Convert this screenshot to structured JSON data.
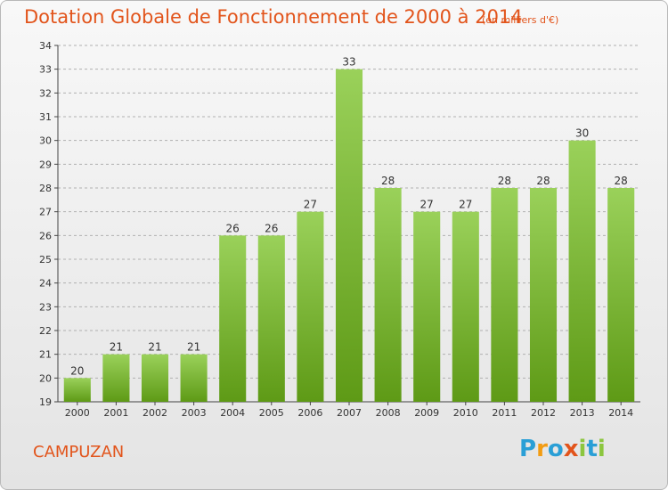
{
  "header": {
    "title": "Dotation Globale de Fonctionnement de 2000 à 2014",
    "subtitle": "(en milliers d'€)"
  },
  "footer": {
    "commune": "CAMPUZAN",
    "logo_text": "Proxiti",
    "logo_letters": [
      {
        "ch": "P",
        "color": "#2a9fd6"
      },
      {
        "ch": "r",
        "color": "#f39c12"
      },
      {
        "ch": "o",
        "color": "#2a9fd6"
      },
      {
        "ch": "x",
        "color": "#e2541b"
      },
      {
        "ch": "i",
        "color": "#8cc63f"
      },
      {
        "ch": "t",
        "color": "#2a9fd6"
      },
      {
        "ch": "i",
        "color": "#8cc63f"
      }
    ]
  },
  "colors": {
    "accent": "#e2541b",
    "bar_top": "#9ad15a",
    "bar_bottom": "#5e9a16",
    "grid": "#b0b0b0",
    "axis": "#444444",
    "text": "#333333"
  },
  "chart_data": {
    "type": "bar",
    "title": "Dotation Globale de Fonctionnement de 2000 à 2014",
    "subtitle": "(en milliers d'€)",
    "categories": [
      "2000",
      "2001",
      "2002",
      "2003",
      "2004",
      "2005",
      "2006",
      "2007",
      "2008",
      "2009",
      "2010",
      "2011",
      "2012",
      "2013",
      "2014"
    ],
    "values": [
      20,
      21,
      21,
      21,
      26,
      26,
      27,
      33,
      28,
      27,
      27,
      28,
      28,
      30,
      28
    ],
    "ylim": [
      19,
      34
    ],
    "yticks": [
      19,
      20,
      21,
      22,
      23,
      24,
      25,
      26,
      27,
      28,
      29,
      30,
      31,
      32,
      33,
      34
    ],
    "grid": true,
    "legend": "none"
  }
}
